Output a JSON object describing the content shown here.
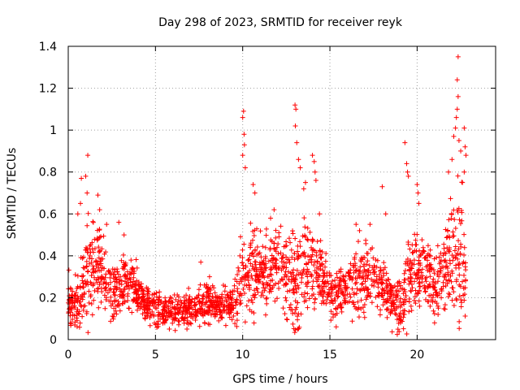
{
  "chart_data": {
    "type": "scatter",
    "title": "Day 298 of 2023, SRMTID for receiver reyk",
    "xlabel": "GPS time / hours",
    "ylabel": "SRMTID / TECUs",
    "xlim": [
      0,
      24.5
    ],
    "ylim": [
      0,
      1.4
    ],
    "xticks": [
      0,
      5,
      10,
      15,
      20
    ],
    "xtick_labels": [
      "0",
      "5",
      "10",
      "15",
      "20"
    ],
    "yticks": [
      0,
      0.2,
      0.4,
      0.6,
      0.8,
      1.0,
      1.2,
      1.4
    ],
    "ytick_labels": [
      "0",
      "0.2",
      "0.4",
      "0.6",
      "0.8",
      "1",
      "1.2",
      "1.4"
    ],
    "grid": true,
    "marker": "plus",
    "color": "#ff0000",
    "series": [
      {
        "name": "SRMTID",
        "profile": {
          "hours": [
            0,
            0.5,
            1.0,
            1.5,
            2.0,
            2.5,
            3.0,
            3.5,
            4.0,
            4.5,
            5.0,
            5.5,
            6.0,
            6.5,
            7.0,
            7.5,
            8.0,
            8.5,
            9.0,
            9.5,
            10.0,
            10.5,
            11.0,
            11.5,
            12.0,
            12.5,
            13.0,
            13.5,
            14.0,
            14.5,
            15.0,
            15.5,
            16.0,
            16.5,
            17.0,
            17.5,
            18.0,
            18.5,
            19.0,
            19.5,
            20.0,
            20.5,
            21.0,
            21.5,
            22.0,
            22.5,
            22.8
          ],
          "median": [
            0.18,
            0.16,
            0.3,
            0.38,
            0.32,
            0.22,
            0.25,
            0.28,
            0.22,
            0.17,
            0.14,
            0.12,
            0.12,
            0.13,
            0.15,
            0.17,
            0.18,
            0.17,
            0.16,
            0.16,
            0.3,
            0.34,
            0.32,
            0.36,
            0.35,
            0.28,
            0.3,
            0.33,
            0.34,
            0.3,
            0.22,
            0.22,
            0.24,
            0.3,
            0.3,
            0.28,
            0.24,
            0.2,
            0.14,
            0.3,
            0.36,
            0.33,
            0.25,
            0.3,
            0.42,
            0.4,
            0.3
          ],
          "spread": [
            0.12,
            0.12,
            0.22,
            0.18,
            0.15,
            0.12,
            0.12,
            0.12,
            0.1,
            0.08,
            0.08,
            0.07,
            0.07,
            0.07,
            0.07,
            0.08,
            0.08,
            0.08,
            0.08,
            0.08,
            0.22,
            0.18,
            0.15,
            0.17,
            0.16,
            0.15,
            0.25,
            0.2,
            0.18,
            0.12,
            0.1,
            0.1,
            0.12,
            0.15,
            0.14,
            0.13,
            0.12,
            0.12,
            0.12,
            0.2,
            0.2,
            0.15,
            0.14,
            0.18,
            0.28,
            0.3,
            0.15
          ]
        },
        "points": [
          [
            1.0,
            0.78
          ],
          [
            1.08,
            0.7
          ],
          [
            1.12,
            0.88
          ],
          [
            0.7,
            0.65
          ],
          [
            0.75,
            0.77
          ],
          [
            0.55,
            0.6
          ],
          [
            1.7,
            0.69
          ],
          [
            1.8,
            0.62
          ],
          [
            2.2,
            0.55
          ],
          [
            2.9,
            0.56
          ],
          [
            3.2,
            0.5
          ],
          [
            7.6,
            0.37
          ],
          [
            8.1,
            0.3
          ],
          [
            10.0,
            1.06
          ],
          [
            10.05,
            1.09
          ],
          [
            10.08,
            0.98
          ],
          [
            10.1,
            0.93
          ],
          [
            10.0,
            0.88
          ],
          [
            10.15,
            0.82
          ],
          [
            10.6,
            0.74
          ],
          [
            10.7,
            0.7
          ],
          [
            11.8,
            0.62
          ],
          [
            11.6,
            0.58
          ],
          [
            13.0,
            1.12
          ],
          [
            13.05,
            1.1
          ],
          [
            13.02,
            1.02
          ],
          [
            13.1,
            0.94
          ],
          [
            13.2,
            0.86
          ],
          [
            13.3,
            0.82
          ],
          [
            13.6,
            0.75
          ],
          [
            13.5,
            0.72
          ],
          [
            14.0,
            0.88
          ],
          [
            14.1,
            0.85
          ],
          [
            14.15,
            0.8
          ],
          [
            14.2,
            0.76
          ],
          [
            14.4,
            0.6
          ],
          [
            16.5,
            0.55
          ],
          [
            16.7,
            0.52
          ],
          [
            17.3,
            0.55
          ],
          [
            18.0,
            0.73
          ],
          [
            18.2,
            0.6
          ],
          [
            18.8,
            0.12
          ],
          [
            18.9,
            0.05
          ],
          [
            19.3,
            0.94
          ],
          [
            19.4,
            0.84
          ],
          [
            19.45,
            0.8
          ],
          [
            19.5,
            0.78
          ],
          [
            20.0,
            0.74
          ],
          [
            20.05,
            0.7
          ],
          [
            20.1,
            0.65
          ],
          [
            21.0,
            0.08
          ],
          [
            21.2,
            0.12
          ],
          [
            21.8,
            0.8
          ],
          [
            22.0,
            0.86
          ],
          [
            22.1,
            0.97
          ],
          [
            22.2,
            1.01
          ],
          [
            22.25,
            1.06
          ],
          [
            22.3,
            1.1
          ],
          [
            22.35,
            1.16
          ],
          [
            22.3,
            1.24
          ],
          [
            22.35,
            1.35
          ],
          [
            22.4,
            0.95
          ],
          [
            22.5,
            0.9
          ],
          [
            22.7,
            1.01
          ],
          [
            22.75,
            0.92
          ],
          [
            22.8,
            0.88
          ],
          [
            22.7,
            0.8
          ],
          [
            22.6,
            0.75
          ]
        ],
        "generated": {
          "count": 2100,
          "seed": 298,
          "x_range": [
            0.0,
            22.8
          ]
        }
      }
    ]
  }
}
